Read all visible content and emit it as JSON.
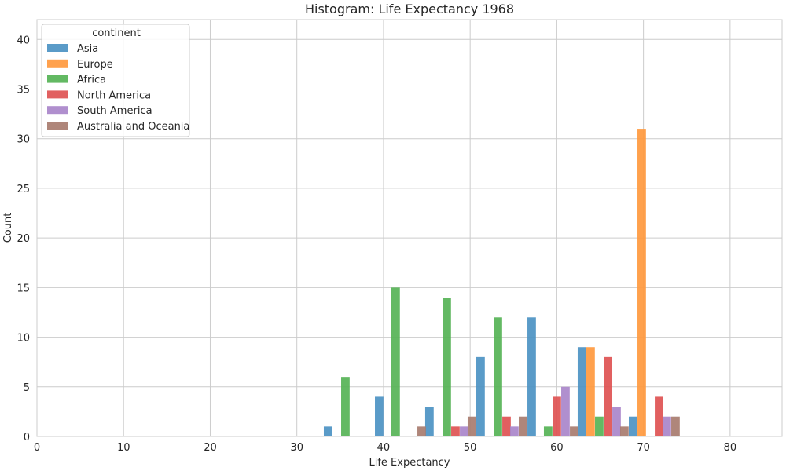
{
  "chart_data": {
    "type": "bar",
    "title": "Histogram: Life Expectancy 1968",
    "xlabel": "Life Expectancy",
    "ylabel": "Count",
    "xlim": [
      0,
      86
    ],
    "ylim": [
      0,
      42
    ],
    "xticks": [
      0,
      10,
      20,
      30,
      40,
      50,
      60,
      70,
      80
    ],
    "yticks": [
      0,
      5,
      10,
      15,
      20,
      25,
      30,
      35,
      40
    ],
    "grid": true,
    "bar_width": 0.98,
    "legend": {
      "title": "continent",
      "placement": "top-left"
    },
    "series": [
      {
        "name": "Asia",
        "color": "#4c92c3",
        "x": [
          33.6,
          39.5,
          45.3,
          51.2,
          57.1,
          62.9,
          68.8
        ],
        "values": [
          1,
          4,
          3,
          8,
          12,
          9,
          2
        ]
      },
      {
        "name": "Europe",
        "color": "#ff993e",
        "x": [
          63.9,
          69.8
        ],
        "values": [
          9,
          31
        ]
      },
      {
        "name": "Africa",
        "color": "#56b356",
        "x": [
          35.6,
          41.4,
          47.3,
          53.2,
          59.0,
          64.9
        ],
        "values": [
          6,
          15,
          14,
          12,
          1,
          2
        ]
      },
      {
        "name": "North America",
        "color": "#de5253",
        "x": [
          48.3,
          54.2,
          60.0,
          65.9,
          71.8
        ],
        "values": [
          1,
          2,
          4,
          8,
          4
        ]
      },
      {
        "name": "South America",
        "color": "#a985ca",
        "x": [
          49.3,
          55.1,
          61.0,
          66.9,
          72.7
        ],
        "values": [
          1,
          1,
          5,
          3,
          2
        ]
      },
      {
        "name": "Australia and Oceania",
        "color": "#a87c6f",
        "x": [
          44.4,
          50.2,
          56.1,
          62.0,
          67.8,
          73.7
        ],
        "values": [
          1,
          2,
          2,
          1,
          1,
          2
        ]
      }
    ]
  }
}
